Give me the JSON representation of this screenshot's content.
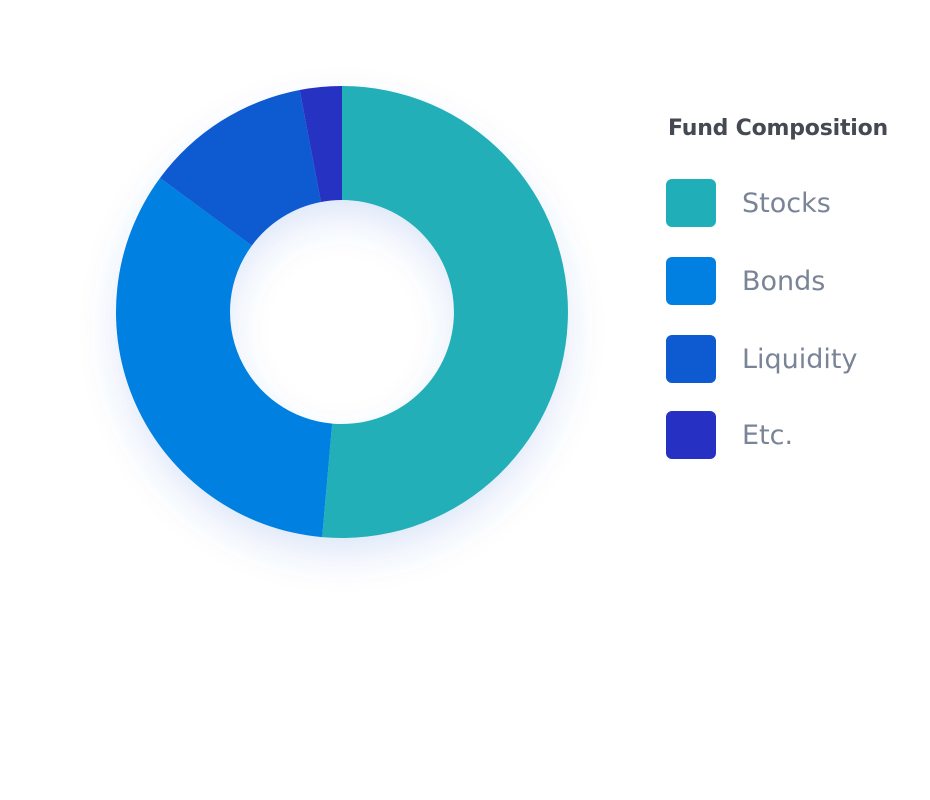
{
  "chart_data": {
    "type": "pie",
    "title": "Fund Composition",
    "legend_position": "right",
    "donut": true,
    "categories": [
      "Stocks",
      "Bonds",
      "Liquidity",
      "Etc."
    ],
    "values": [
      51.4,
      33.7,
      11.9,
      3.0
    ],
    "colors": [
      "#20afb8",
      "#0280e1",
      "#0e5ad1",
      "#2630c2"
    ]
  }
}
